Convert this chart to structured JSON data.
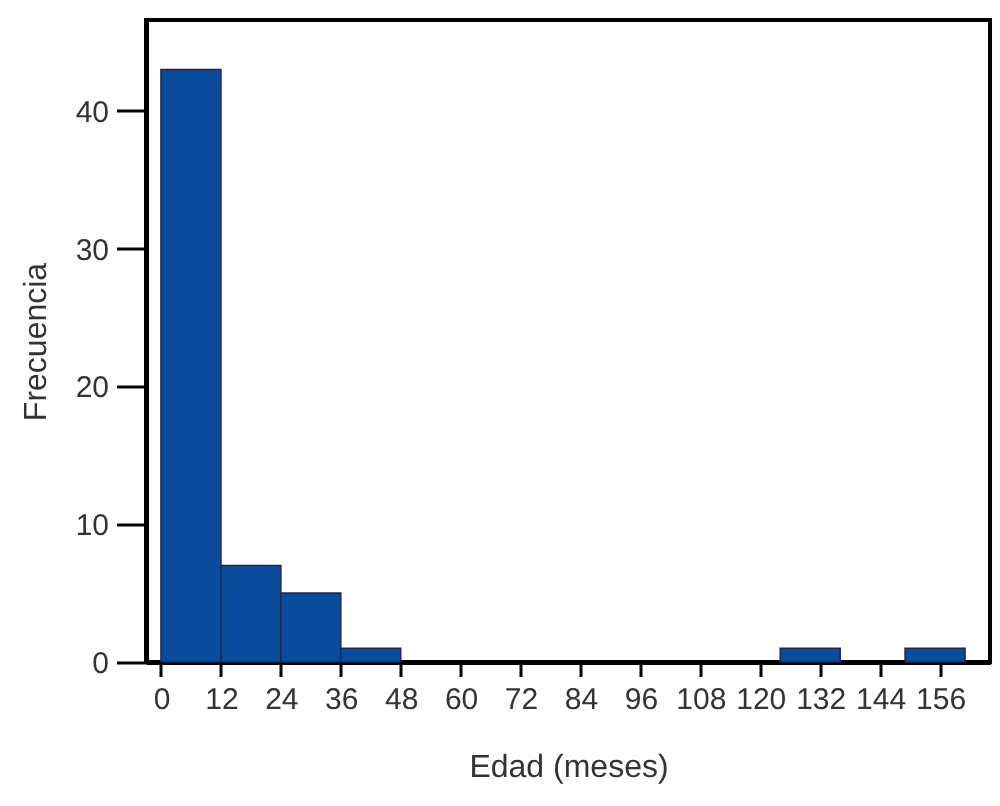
{
  "chart_data": {
    "type": "histogram",
    "xlabel": "Edad (meses)",
    "ylabel": "Frecuencia",
    "bins": [
      0,
      12,
      24,
      36,
      48,
      124,
      136,
      149,
      161
    ],
    "values": [
      43,
      7,
      5,
      1,
      0,
      1,
      0,
      1
    ],
    "color": "#0a4b9b",
    "xlim": [
      -3,
      166
    ],
    "ylim": [
      0,
      46.6
    ],
    "xticks": [
      0,
      12,
      24,
      36,
      48,
      60,
      72,
      84,
      96,
      108,
      120,
      132,
      144,
      156
    ],
    "yticks": [
      0,
      10,
      20,
      30,
      40
    ]
  }
}
